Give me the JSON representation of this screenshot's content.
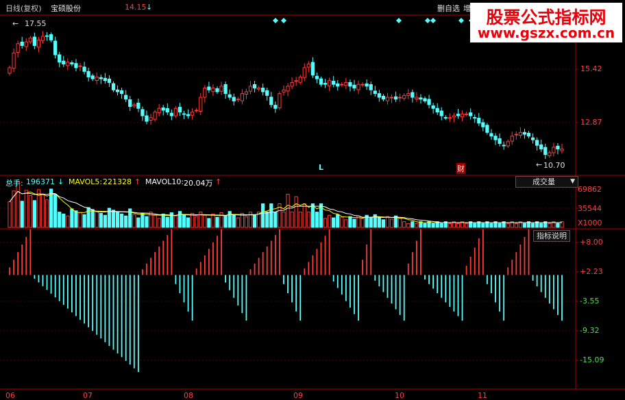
{
  "header": {
    "period": "日线(复权)",
    "stock_name": "宝硕股份",
    "price": "14.15",
    "price_arrow": "↓",
    "menu_label": "删自选",
    "menu_extra": "增"
  },
  "price_chart": {
    "high_marker": "17.55",
    "low_marker": "10.70",
    "y_ticks": [
      "15.42",
      "12.87"
    ],
    "signal_L": "L",
    "signal_cai": "财",
    "ymin": 10.0,
    "ymax": 18.3,
    "closes": [
      15.6,
      16.4,
      16.9,
      16.8,
      17.0,
      17.2,
      16.8,
      17.1,
      17.3,
      17.3,
      17.1,
      16.3,
      15.9,
      15.8,
      15.9,
      15.8,
      15.6,
      15.7,
      15.4,
      15.1,
      15.0,
      15.1,
      15.0,
      14.9,
      14.8,
      14.4,
      14.3,
      14.2,
      13.9,
      13.5,
      13.6,
      13.4,
      13.0,
      12.7,
      12.9,
      13.2,
      13.4,
      13.3,
      13.2,
      13.0,
      13.4,
      13.2,
      13.1,
      13.0,
      13.2,
      13.3,
      14.0,
      14.5,
      14.4,
      14.5,
      14.3,
      14.6,
      14.2,
      14.0,
      13.8,
      13.9,
      14.2,
      14.3,
      14.6,
      14.5,
      14.5,
      14.3,
      14.1,
      13.6,
      13.4,
      14.2,
      14.4,
      14.6,
      14.8,
      14.9,
      15.1,
      15.6,
      15.8,
      15.2,
      15.0,
      14.7,
      14.7,
      14.9,
      14.7,
      14.6,
      14.7,
      14.8,
      14.6,
      14.5,
      14.7,
      14.7,
      14.6,
      14.4,
      14.2,
      14.0,
      13.9,
      14.0,
      14.0,
      13.9,
      14.0,
      14.1,
      14.2,
      14.0,
      14.0,
      13.9,
      13.8,
      13.6,
      13.4,
      13.2,
      13.0,
      12.9,
      12.9,
      13.0,
      13.0,
      13.1,
      13.1,
      13.0,
      12.9,
      12.6,
      12.4,
      12.1,
      11.9,
      11.7,
      11.5,
      11.4,
      11.6,
      11.9,
      12.0,
      12.1,
      12.0,
      11.9,
      11.7,
      11.4,
      11.2,
      10.9,
      11.0,
      11.3,
      11.2,
      11.2
    ]
  },
  "volume_panel": {
    "total_label": "总手:",
    "total_value": "196371",
    "total_arrow": "↓",
    "mavol5_label": "MAVOL5:",
    "mavol5_value": "221328",
    "mavol5_arrow": "↑",
    "mavol10_label": "MAVOL10:",
    "mavol10_value": "20.04万",
    "mavol10_arrow": "↑",
    "selector_label": "成交量",
    "selector_caret": "▼",
    "y_ticks": [
      "69862",
      "35544"
    ],
    "multiplier": "X1000",
    "vmax": 75
  },
  "indicator_panel": {
    "button_label": "指标说明",
    "y_ticks": [
      "+8.00",
      "+2.23",
      "-3.55",
      "-9.32",
      "-15.09"
    ],
    "ymin": -17.5,
    "ymax": 9.0
  },
  "date_axis": {
    "labels": [
      "06",
      "07",
      "08",
      "09",
      "10",
      "11"
    ]
  },
  "watermark": {
    "line1": "股票公式指标网",
    "line2": "www.gszx.com.cn"
  },
  "colors": {
    "up": "#ff3b3b",
    "down": "#54ffff",
    "axis": "#b00000",
    "grid": "#5a0000",
    "label_red": "#ff4040",
    "label_green": "#50e050",
    "white": "#e0e0e0"
  }
}
